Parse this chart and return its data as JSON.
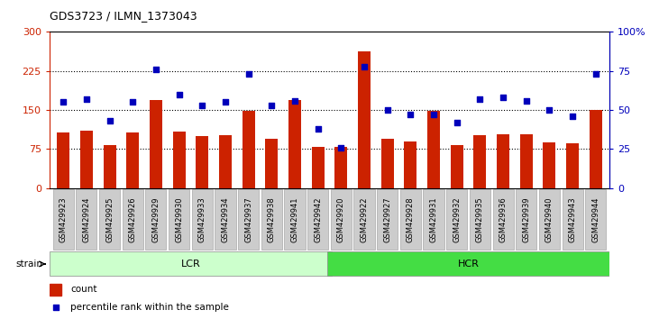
{
  "title": "GDS3723 / ILMN_1373043",
  "samples": [
    "GSM429923",
    "GSM429924",
    "GSM429925",
    "GSM429926",
    "GSM429929",
    "GSM429930",
    "GSM429933",
    "GSM429934",
    "GSM429937",
    "GSM429938",
    "GSM429941",
    "GSM429942",
    "GSM429920",
    "GSM429922",
    "GSM429927",
    "GSM429928",
    "GSM429931",
    "GSM429932",
    "GSM429935",
    "GSM429936",
    "GSM429939",
    "GSM429940",
    "GSM429943",
    "GSM429944"
  ],
  "counts": [
    107,
    110,
    82,
    107,
    170,
    108,
    100,
    102,
    148,
    95,
    170,
    80,
    80,
    263,
    95,
    90,
    148,
    82,
    102,
    104,
    104,
    88,
    86,
    150
  ],
  "percentile_ranks": [
    55,
    57,
    43,
    55,
    76,
    60,
    53,
    55,
    73,
    53,
    56,
    38,
    26,
    78,
    50,
    47,
    47,
    42,
    57,
    58,
    56,
    50,
    46,
    73
  ],
  "n_lcr": 12,
  "ylim_left": [
    0,
    300
  ],
  "ylim_right": [
    0,
    100
  ],
  "yticks_left": [
    0,
    75,
    150,
    225,
    300
  ],
  "yticks_right": [
    0,
    25,
    50,
    75,
    100
  ],
  "bar_color": "#cc2200",
  "dot_color": "#0000bb",
  "lcr_color": "#ccffcc",
  "hcr_color": "#44dd44",
  "tick_bg_color": "#cccccc",
  "background_color": "#ffffff",
  "figsize": [
    7.31,
    3.54
  ],
  "dpi": 100
}
